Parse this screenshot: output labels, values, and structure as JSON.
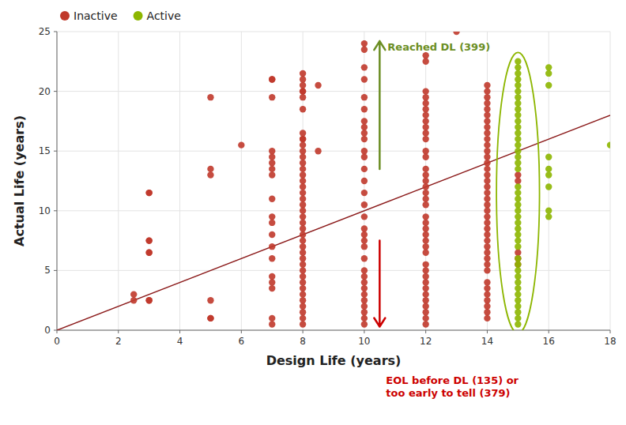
{
  "chart_data": {
    "type": "scatter",
    "xlabel": "Design Life (years)",
    "ylabel": "Actual Life (years)",
    "xlim": [
      0,
      18
    ],
    "ylim": [
      0,
      25
    ],
    "xticks": [
      0,
      2,
      4,
      6,
      8,
      10,
      12,
      14,
      16,
      18
    ],
    "yticks": [
      0,
      5,
      10,
      15,
      20,
      25
    ],
    "grid": true,
    "legend": "upper left",
    "series": [
      {
        "name": "Inactive",
        "color": "#C0392B",
        "x": [
          2.5,
          2.5,
          3.0,
          3.0,
          3.0,
          3.0,
          3.0,
          3.0,
          3.0,
          3.0,
          5.0,
          5.0,
          5.0,
          5.0,
          5.0,
          5.0,
          6.0,
          7.0,
          7.0,
          7.0,
          7.0,
          7.0,
          7.0,
          7.0,
          7.0,
          7.0,
          7.0,
          7.0,
          7.0,
          7.0,
          7.0,
          7.0,
          7.0,
          7.0,
          7.0,
          7.0,
          8.0,
          8.0,
          8.0,
          8.0,
          8.0,
          8.0,
          8.0,
          8.0,
          8.0,
          8.0,
          8.0,
          8.0,
          8.0,
          8.0,
          8.0,
          8.0,
          8.0,
          8.0,
          8.0,
          8.0,
          8.0,
          8.0,
          8.0,
          8.0,
          8.0,
          8.0,
          8.0,
          8.0,
          8.0,
          8.0,
          8.0,
          8.0,
          8.0,
          8.0,
          8.0,
          8.0,
          8.0,
          8.0,
          8.0,
          8.0,
          8.0,
          8.5,
          8.5,
          10.0,
          10.0,
          10.0,
          10.0,
          10.0,
          10.0,
          10.0,
          10.0,
          10.0,
          10.0,
          10.0,
          10.0,
          10.0,
          10.0,
          10.0,
          10.0,
          10.0,
          10.0,
          10.0,
          10.0,
          10.0,
          10.0,
          10.0,
          10.0,
          10.0,
          10.0,
          10.0,
          10.0,
          10.0,
          10.0,
          10.0,
          10.0,
          12.0,
          12.0,
          12.0,
          12.0,
          12.0,
          12.0,
          12.0,
          12.0,
          12.0,
          12.0,
          12.0,
          12.0,
          12.0,
          12.0,
          12.0,
          12.0,
          12.0,
          12.0,
          12.0,
          12.0,
          12.0,
          12.0,
          12.0,
          12.0,
          12.0,
          12.0,
          12.0,
          12.0,
          12.0,
          12.0,
          12.0,
          12.0,
          12.0,
          12.0,
          12.0,
          12.0,
          12.0,
          12.0,
          13.0,
          14.0,
          14.0,
          14.0,
          14.0,
          14.0,
          14.0,
          14.0,
          14.0,
          14.0,
          14.0,
          14.0,
          14.0,
          14.0,
          14.0,
          14.0,
          14.0,
          14.0,
          14.0,
          14.0,
          14.0,
          14.0,
          14.0,
          14.0,
          14.0,
          14.0,
          14.0,
          14.0,
          14.0,
          14.0,
          14.0,
          14.0,
          14.0,
          14.0,
          14.0,
          14.0,
          14.0,
          14.0,
          14.0,
          14.0,
          15.0,
          15.0,
          15.0,
          15.0,
          15.0
        ],
        "values": [
          2.5,
          3.0,
          2.5,
          2.5,
          11.5,
          11.5,
          7.5,
          7.5,
          6.5,
          6.5,
          19.5,
          13.0,
          13.5,
          2.5,
          1.0,
          1.0,
          15.5,
          21.0,
          21.0,
          19.5,
          15.0,
          14.5,
          14.0,
          13.5,
          13.0,
          11.0,
          9.5,
          9.0,
          8.0,
          7.0,
          6.0,
          4.5,
          4.0,
          3.5,
          1.0,
          0.5,
          21.5,
          21.0,
          20.5,
          20.0,
          20.0,
          19.5,
          18.5,
          16.5,
          16.0,
          16.0,
          15.5,
          15.0,
          14.5,
          14.0,
          13.5,
          13.0,
          12.5,
          12.0,
          11.5,
          11.0,
          10.5,
          10.0,
          9.5,
          9.0,
          8.5,
          8.0,
          7.5,
          7.0,
          6.5,
          6.0,
          5.5,
          5.0,
          4.5,
          4.0,
          3.5,
          3.0,
          2.5,
          2.0,
          1.5,
          1.0,
          0.5,
          20.5,
          15.0,
          24.0,
          23.5,
          22.0,
          21.0,
          19.5,
          18.5,
          17.5,
          17.0,
          16.5,
          16.0,
          15.0,
          14.5,
          13.5,
          12.5,
          11.5,
          10.5,
          9.5,
          8.5,
          8.0,
          7.5,
          7.0,
          6.0,
          5.0,
          4.5,
          4.0,
          3.5,
          3.0,
          2.5,
          2.0,
          1.5,
          1.0,
          0.5,
          23.0,
          22.5,
          20.0,
          19.5,
          19.0,
          18.5,
          18.0,
          17.5,
          17.0,
          16.5,
          16.0,
          15.0,
          14.5,
          13.5,
          13.0,
          12.5,
          12.0,
          11.5,
          11.0,
          10.5,
          9.5,
          9.0,
          8.5,
          8.0,
          7.5,
          7.0,
          6.5,
          5.5,
          5.0,
          4.5,
          4.0,
          3.5,
          3.0,
          2.5,
          2.0,
          1.5,
          1.0,
          0.5,
          25.0,
          20.5,
          20.0,
          19.5,
          19.0,
          18.5,
          18.0,
          17.5,
          17.0,
          16.5,
          16.0,
          15.5,
          15.0,
          14.5,
          14.0,
          13.5,
          13.0,
          12.5,
          12.0,
          11.5,
          11.0,
          10.5,
          10.0,
          9.5,
          9.0,
          8.5,
          8.0,
          7.5,
          7.0,
          6.5,
          6.0,
          5.5,
          5.0,
          4.0,
          3.5,
          3.0,
          2.5,
          2.0,
          1.5,
          1.0,
          13.0,
          12.5,
          6.5,
          6.0,
          5.5
        ]
      },
      {
        "name": "Active",
        "color": "#8DB600",
        "x": [
          15.0,
          15.0,
          15.0,
          15.0,
          15.0,
          15.0,
          15.0,
          15.0,
          15.0,
          15.0,
          15.0,
          15.0,
          15.0,
          15.0,
          15.0,
          15.0,
          15.0,
          15.0,
          15.0,
          15.0,
          15.0,
          15.0,
          15.0,
          15.0,
          15.0,
          15.0,
          15.0,
          15.0,
          15.0,
          15.0,
          15.0,
          15.0,
          15.0,
          15.0,
          15.0,
          15.0,
          15.0,
          15.0,
          15.0,
          15.0,
          15.0,
          15.0,
          16.0,
          16.0,
          16.0,
          16.0,
          16.0,
          16.0,
          16.0,
          16.0,
          16.0,
          18.0
        ],
        "values": [
          22.5,
          22.0,
          21.5,
          21.0,
          20.5,
          20.0,
          19.5,
          19.0,
          18.5,
          18.0,
          17.5,
          17.0,
          16.5,
          16.0,
          15.5,
          15.0,
          14.5,
          14.0,
          13.5,
          12.0,
          11.5,
          11.0,
          10.5,
          10.0,
          9.5,
          9.0,
          8.5,
          8.0,
          7.5,
          7.0,
          6.0,
          5.5,
          5.0,
          4.5,
          4.0,
          3.5,
          3.0,
          2.5,
          2.0,
          1.5,
          1.0,
          0.5,
          22.0,
          21.5,
          20.5,
          14.5,
          13.5,
          13.0,
          12.0,
          10.0,
          9.5,
          15.5
        ]
      }
    ],
    "reference_line": {
      "x": [
        0,
        18
      ],
      "values": [
        0,
        18
      ],
      "color": "#8B1A1A"
    },
    "ellipse": {
      "x": 15.0,
      "y": 11.5,
      "width": 1.4,
      "height": 23.5,
      "color": "#8DB600"
    },
    "annotations": [
      {
        "text": "Reached DL (399)",
        "color": "#6B8E23",
        "x": 10.5,
        "y_start": 13.5,
        "y_end": 24.2
      },
      {
        "text": "EOL before DL (135) or\ntoo early to tell (379)",
        "color": "#CC0000",
        "x": 10.5,
        "y_start": 7.5,
        "y_end": 0.3
      }
    ]
  }
}
